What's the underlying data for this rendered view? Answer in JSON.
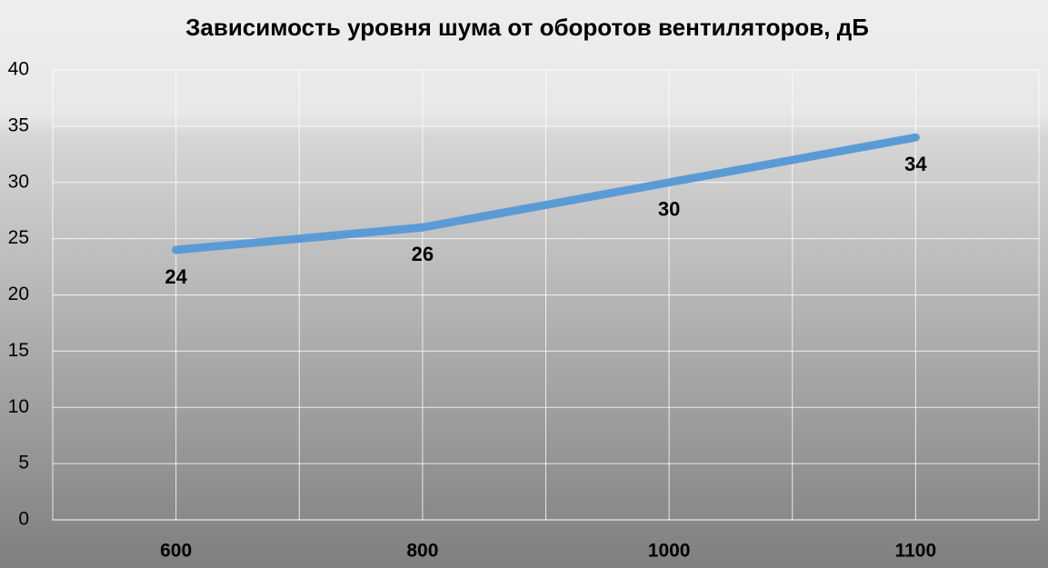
{
  "chart_data": {
    "type": "line",
    "title": "Зависимость уровня шума от оборотов вентиляторов, дБ",
    "categories": [
      "600",
      "800",
      "1000",
      "1100"
    ],
    "values": [
      24,
      26,
      30,
      34
    ],
    "color": "#5b9bd5",
    "ylim": [
      0,
      40
    ],
    "yticks": [
      0,
      5,
      10,
      15,
      20,
      25,
      30,
      35,
      40
    ],
    "grid": true
  }
}
